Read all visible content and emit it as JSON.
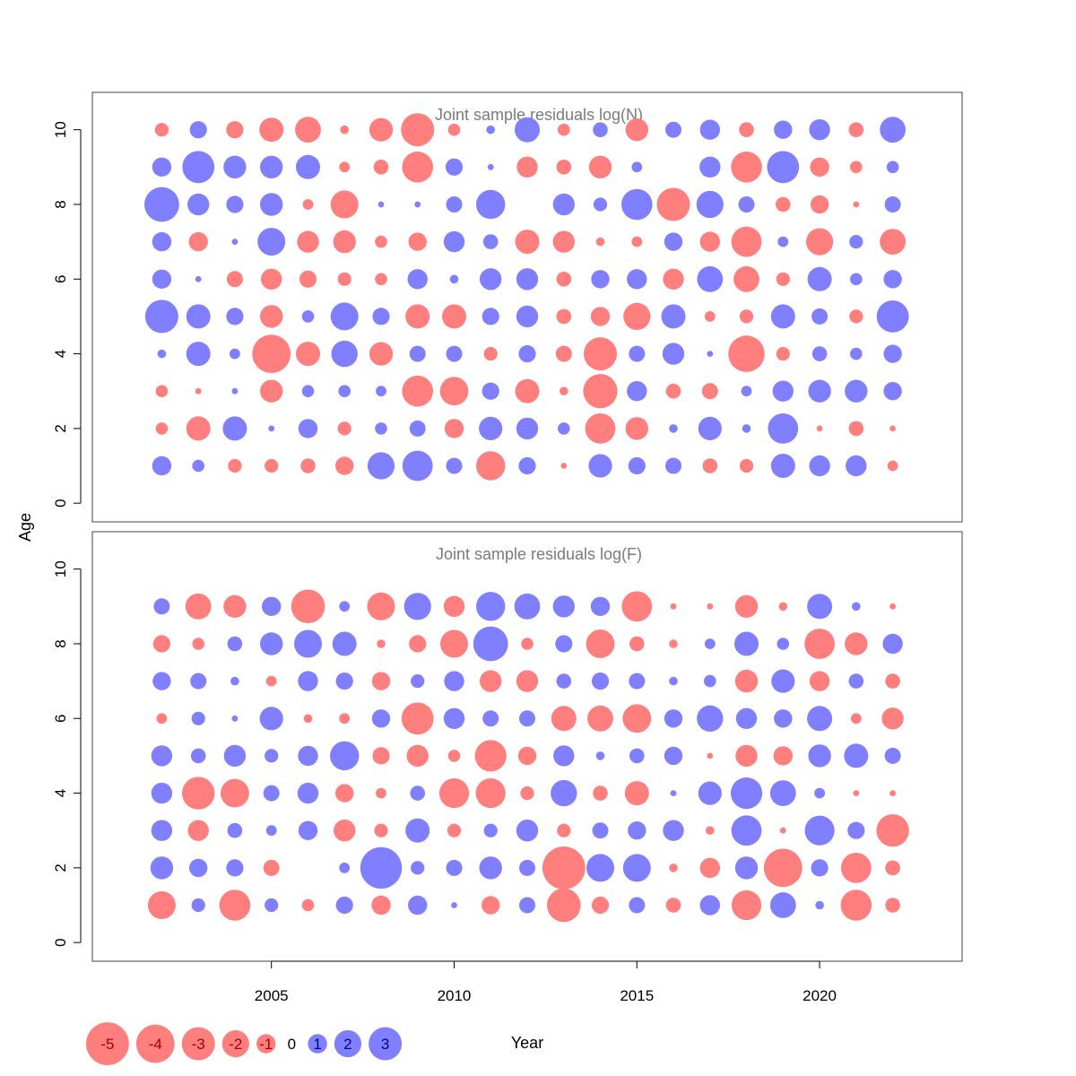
{
  "colors": {
    "negative": "#ff7f7f",
    "positive": "#7f7fff",
    "negative_text": "#a80000",
    "positive_text": "#00008b",
    "title_text": "#7a7a7a",
    "frame": "#404040"
  },
  "chart_data": {
    "type": "scatter",
    "encoding": "bubble: circle area proportional to |residual|; red = negative, blue = positive",
    "xlabel": "Year",
    "ylabel": "Age",
    "xlim": [
      2000.1,
      2023.9
    ],
    "x_ticks": [
      2005,
      2010,
      2015,
      2020
    ],
    "years": [
      2002,
      2003,
      2004,
      2005,
      2006,
      2007,
      2008,
      2009,
      2010,
      2011,
      2012,
      2013,
      2014,
      2015,
      2016,
      2017,
      2018,
      2019,
      2020,
      2021,
      2022
    ],
    "legend": {
      "placement": "bottom-left",
      "values": [
        -5,
        -4,
        -3,
        -2,
        -1,
        0,
        1,
        2,
        3
      ],
      "labels": [
        "-5",
        "-4",
        "-3",
        "-2",
        "-1",
        "0",
        "1",
        "2",
        "3"
      ]
    },
    "panels": [
      {
        "title": "Joint sample residuals log(N)",
        "ylim": [
          -0.5,
          11
        ],
        "y_ticks": [
          0,
          2,
          4,
          6,
          8,
          10
        ],
        "y_tick_labels": [
          "0",
          "2",
          "4",
          "6",
          "8",
          "10"
        ],
        "ages": [
          1,
          2,
          3,
          4,
          5,
          6,
          7,
          8,
          9,
          10
        ],
        "residuals": [
          [
            1.0,
            -0.4,
            -0.4,
            0.2,
            3.0,
            1.0,
            1.0,
            3.3,
            1.0,
            -0.5
          ],
          [
            0.4,
            -1.6,
            -0.1,
            1.6,
            1.6,
            0.1,
            -1.0,
            1.3,
            2.8,
            0.8
          ],
          [
            -0.5,
            1.6,
            0.1,
            0.3,
            0.8,
            -0.7,
            0.1,
            0.8,
            1.4,
            -0.8
          ],
          [
            -0.5,
            0.1,
            -1.4,
            -4.0,
            -1.4,
            -1.2,
            2.1,
            1.4,
            1.4,
            -1.6
          ],
          [
            -0.6,
            1.0,
            0.4,
            -1.6,
            0.4,
            -0.8,
            -1.3,
            -0.3,
            1.6,
            -1.8
          ],
          [
            -0.9,
            -0.5,
            0.4,
            1.9,
            2.1,
            -0.5,
            -1.4,
            -2.1,
            -0.3,
            -0.2
          ],
          [
            2.0,
            0.4,
            0.3,
            -1.5,
            0.8,
            -0.4,
            -0.4,
            0.1,
            -0.6,
            -1.5
          ],
          [
            2.5,
            0.7,
            -2.6,
            0.7,
            -1.6,
            1.1,
            -0.9,
            0.1,
            -2.6,
            -3.0
          ],
          [
            0.7,
            -1.0,
            -2.2,
            0.7,
            -1.6,
            0.2,
            1.2,
            0.7,
            0.8,
            -0.4
          ],
          [
            -2.3,
            1.5,
            0.8,
            -0.5,
            0.8,
            1.3,
            0.6,
            2.3,
            0.1,
            0.2
          ],
          [
            0.8,
            1.3,
            -1.6,
            0.8,
            1.3,
            1.3,
            -1.6,
            0.0,
            -1.2,
            1.7
          ],
          [
            -0.1,
            0.4,
            -0.2,
            -0.7,
            -0.6,
            -0.6,
            -1.3,
            1.3,
            -0.6,
            -0.4
          ],
          [
            1.5,
            -2.5,
            -3.2,
            -3.0,
            -1.0,
            0.9,
            -0.2,
            0.5,
            -1.4,
            0.6
          ],
          [
            0.8,
            -1.4,
            1.1,
            0.7,
            -2.0,
            1.1,
            -0.3,
            2.6,
            0.3,
            -1.4
          ],
          [
            0.7,
            0.2,
            -0.6,
            1.3,
            1.6,
            -1.2,
            0.9,
            -3.0,
            0.0,
            0.7
          ],
          [
            -0.6,
            1.5,
            -0.7,
            0.1,
            -0.3,
            1.8,
            -1.1,
            2.0,
            1.2,
            1.1
          ],
          [
            -0.5,
            0.2,
            0.3,
            -3.6,
            -0.5,
            -1.8,
            -2.5,
            0.7,
            -2.6,
            -0.6
          ],
          [
            1.6,
            2.5,
            1.2,
            -0.5,
            1.6,
            -0.5,
            0.3,
            -0.6,
            2.8,
            0.9
          ],
          [
            1.2,
            -0.1,
            1.4,
            0.6,
            0.7,
            1.6,
            -2.0,
            -0.9,
            -1.0,
            1.2
          ],
          [
            1.2,
            -0.6,
            1.4,
            0.4,
            -0.5,
            0.4,
            0.5,
            -0.1,
            -0.4,
            -0.6
          ],
          [
            -0.3,
            -0.1,
            0.9,
            0.9,
            2.8,
            0.9,
            -1.8,
            0.7,
            0.4,
            1.8
          ]
        ]
      },
      {
        "title": "Joint sample residuals log(F)",
        "ylim": [
          -0.5,
          11
        ],
        "y_ticks": [
          0,
          2,
          4,
          6,
          8,
          10
        ],
        "y_tick_labels": [
          "0",
          "2",
          "4",
          "6",
          "8",
          "10"
        ],
        "ages": [
          1,
          2,
          3,
          4,
          5,
          6,
          7,
          8,
          9
        ],
        "residuals": [
          [
            -2.1,
            1.4,
            1.2,
            1.2,
            1.2,
            -0.3,
            0.9,
            -0.8,
            0.7
          ],
          [
            0.5,
            0.9,
            -1.2,
            -2.9,
            0.6,
            0.5,
            0.7,
            -0.4,
            -1.8
          ],
          [
            -2.6,
            0.8,
            0.6,
            -2.2,
            1.3,
            0.1,
            0.2,
            0.6,
            -1.4
          ],
          [
            0.5,
            -0.7,
            0.3,
            0.7,
            0.5,
            1.5,
            -0.3,
            1.4,
            1.0
          ],
          [
            -0.4,
            0.0,
            1.0,
            1.2,
            1.1,
            -0.2,
            1.1,
            2.1,
            -3.1
          ],
          [
            0.8,
            0.3,
            -1.3,
            -0.9,
            2.3,
            -0.3,
            0.8,
            1.6,
            0.3
          ],
          [
            -1.0,
            4.7,
            -0.5,
            -0.3,
            -0.8,
            0.9,
            -0.9,
            -0.2,
            -2.1
          ],
          [
            1.0,
            0.5,
            1.6,
            0.6,
            -1.3,
            -2.8,
            0.5,
            -0.8,
            2.0
          ],
          [
            0.1,
            0.7,
            -0.5,
            -2.4,
            -0.4,
            1.2,
            1.1,
            -2.1,
            -1.2
          ],
          [
            -0.9,
            1.4,
            0.5,
            -2.4,
            -2.7,
            0.7,
            -1.3,
            3.3,
            2.3
          ],
          [
            0.7,
            0.7,
            1.3,
            -0.5,
            -0.9,
            0.7,
            -1.3,
            -0.4,
            1.8
          ],
          [
            -3.1,
            -5.0,
            -0.5,
            1.9,
            1.2,
            -1.7,
            0.6,
            0.8,
            1.3
          ],
          [
            -0.8,
            2.1,
            0.7,
            -0.6,
            0.2,
            -1.8,
            0.8,
            -2.2,
            1.0
          ],
          [
            0.7,
            2.1,
            0.9,
            -1.6,
            0.6,
            -2.2,
            0.7,
            -0.6,
            -2.5
          ],
          [
            -0.6,
            -0.2,
            1.2,
            0.1,
            0.9,
            0.9,
            0.2,
            -0.2,
            -0.1
          ],
          [
            1.1,
            -1.1,
            -0.2,
            1.5,
            -0.1,
            1.9,
            0.4,
            0.3,
            -0.1
          ],
          [
            -2.4,
            1.4,
            2.5,
            2.7,
            -1.3,
            1.2,
            -1.4,
            1.6,
            -1.4
          ],
          [
            1.8,
            -4.0,
            -0.1,
            1.8,
            -1.0,
            0.9,
            1.5,
            0.4,
            -0.2
          ],
          [
            0.2,
            0.8,
            2.4,
            0.3,
            1.4,
            1.7,
            -1.1,
            -2.5,
            1.7
          ],
          [
            -2.6,
            -2.5,
            0.8,
            -0.1,
            1.6,
            -0.3,
            0.6,
            -1.4,
            0.2
          ],
          [
            -0.6,
            -0.6,
            -2.9,
            -0.1,
            0.7,
            -1.3,
            -0.6,
            1.1,
            -0.1
          ]
        ]
      }
    ]
  }
}
